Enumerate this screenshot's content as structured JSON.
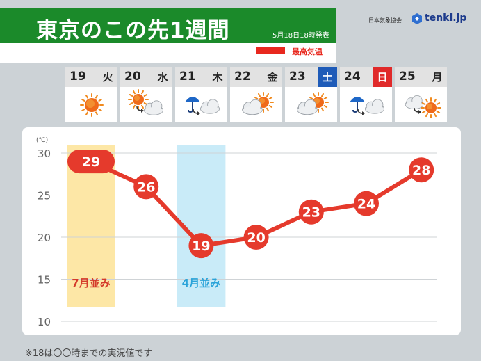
{
  "header": {
    "title": "東京のこの先1週間",
    "issued": "5月18日18時発表",
    "legend_label": "最高気温",
    "legend_color": "#e8281e"
  },
  "branding": {
    "org": "日本気象協会",
    "logo_text": "tenki.jp",
    "logo_icon": "tenki-logo-icon"
  },
  "days": [
    {
      "date": "19",
      "weekday": "火",
      "weather": "sunny",
      "weekday_style": "normal"
    },
    {
      "date": "20",
      "weekday": "水",
      "weather": "sunny-then-cloudy",
      "weekday_style": "normal"
    },
    {
      "date": "21",
      "weekday": "木",
      "weather": "rain-then-cloudy",
      "weekday_style": "normal"
    },
    {
      "date": "22",
      "weekday": "金",
      "weather": "cloudy-sometimes-sunny",
      "weekday_style": "normal"
    },
    {
      "date": "23",
      "weekday": "土",
      "weather": "cloudy-sometimes-sunny",
      "weekday_style": "saturday"
    },
    {
      "date": "24",
      "weekday": "日",
      "weather": "rain-then-cloudy",
      "weekday_style": "sunday"
    },
    {
      "date": "25",
      "weekday": "月",
      "weather": "cloudy-then-sunny",
      "weekday_style": "normal"
    }
  ],
  "colors": {
    "saturday": "#1e5bb8",
    "sunday": "#e02a2a",
    "line": "#e53a2c",
    "july_band": "#fde7a6",
    "april_band": "#c9ebf8",
    "july_text": "#d43a2a",
    "april_text": "#2aa3d9"
  },
  "chart_data": {
    "type": "line",
    "unit_label": "(℃)",
    "yticks": [
      30,
      25,
      20,
      15,
      10
    ],
    "ylim": [
      10,
      30
    ],
    "series": [
      {
        "values": [
          29,
          26,
          19,
          20,
          23,
          24,
          28
        ]
      }
    ],
    "bands": [
      {
        "day_index": 0,
        "label": "7月並み"
      },
      {
        "day_index": 2,
        "label": "4月並み"
      }
    ]
  },
  "footnote": "※18は〇〇時までの実況値です"
}
